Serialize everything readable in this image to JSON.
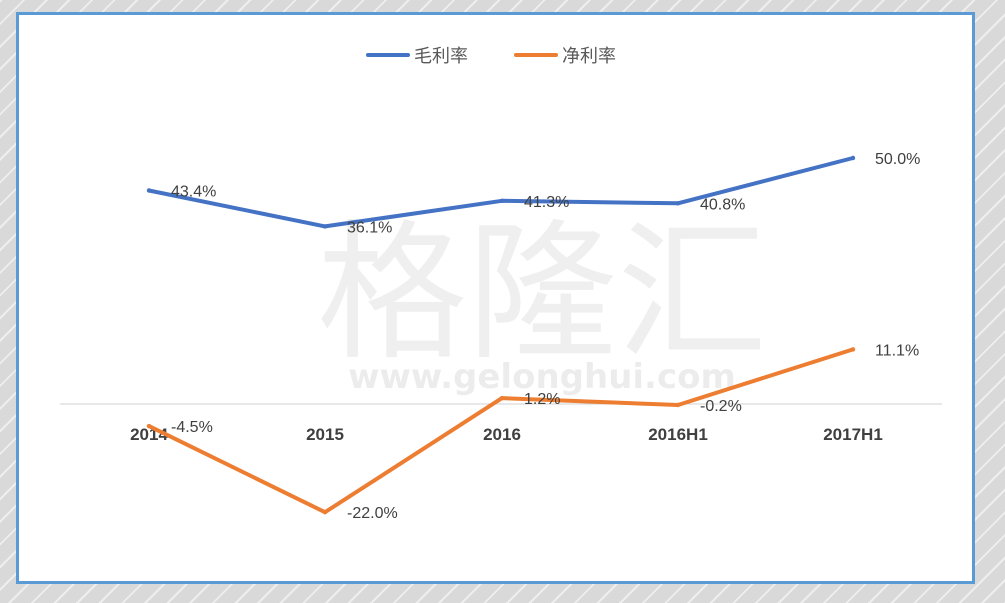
{
  "watermark": {
    "text": "格隆汇",
    "url": "www.gelonghui.com"
  },
  "chart_data": {
    "type": "line",
    "categories": [
      "2014",
      "2015",
      "2016",
      "2016H1",
      "2017H1"
    ],
    "series": [
      {
        "name": "毛利率",
        "color": "#4472c4",
        "values": [
          43.4,
          36.1,
          41.3,
          40.8,
          50.0
        ],
        "labels": [
          "43.4%",
          "36.1%",
          "41.3%",
          "40.8%",
          "50.0%"
        ]
      },
      {
        "name": "净利率",
        "color": "#ed7d31",
        "values": [
          -4.5,
          -22.0,
          1.2,
          -0.2,
          11.1
        ],
        "labels": [
          "-4.5%",
          "-22.0%",
          "1.2%",
          "-0.2%",
          "11.1%"
        ]
      }
    ],
    "ylim": [
      -25,
      55
    ],
    "legend_position": "top-center",
    "grid": false
  }
}
